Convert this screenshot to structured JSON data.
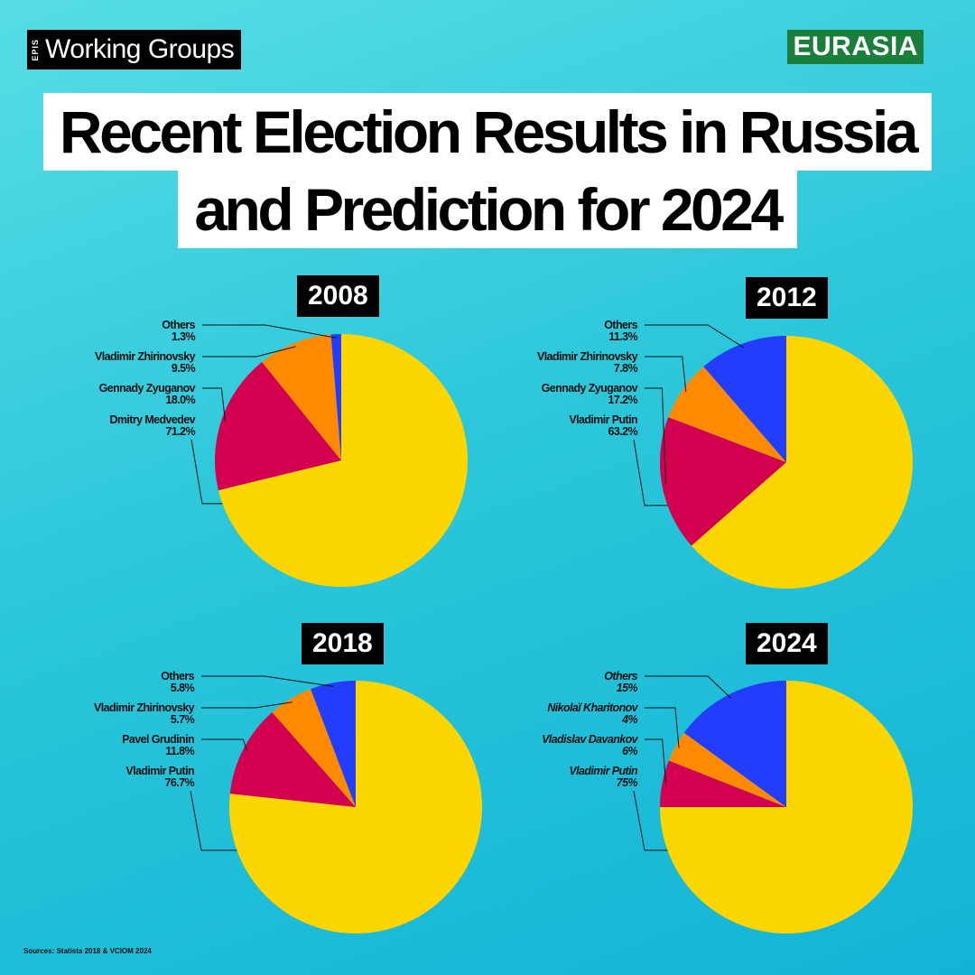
{
  "brand": {
    "prefix": "EPIS",
    "name": "Working Groups",
    "badge": "EURASIA"
  },
  "title": {
    "line1": "Recent Election Results in Russia",
    "line2": "and Prediction for 2024"
  },
  "source": "Sources: Statista 2018 & VCIOM 2024",
  "chart_data": [
    {
      "type": "pie",
      "title": "2008",
      "slices": [
        {
          "name": "Dmitry Medvedev",
          "value": 71.2,
          "label": "71.2%",
          "color": "#fdd600"
        },
        {
          "name": "Gennady Zyuganov",
          "value": 18.0,
          "label": "18.0%",
          "color": "#d2004f"
        },
        {
          "name": "Vladimir Zhirinovsky",
          "value": 9.5,
          "label": "9.5%",
          "color": "#ff8a00"
        },
        {
          "name": "Others",
          "value": 1.3,
          "label": "1.3%",
          "color": "#233dff"
        }
      ]
    },
    {
      "type": "pie",
      "title": "2012",
      "slices": [
        {
          "name": "Vladimir Putin",
          "value": 63.2,
          "label": "63.2%",
          "color": "#fdd600"
        },
        {
          "name": "Gennady Zyuganov",
          "value": 17.2,
          "label": "17.2%",
          "color": "#d2004f"
        },
        {
          "name": "Vladimir Zhirinovsky",
          "value": 7.8,
          "label": "7.8%",
          "color": "#ff8a00"
        },
        {
          "name": "Others",
          "value": 11.3,
          "label": "11.3%",
          "color": "#233dff"
        }
      ]
    },
    {
      "type": "pie",
      "title": "2018",
      "slices": [
        {
          "name": "Vladimir Putin",
          "value": 76.7,
          "label": "76.7%",
          "color": "#fdd600"
        },
        {
          "name": "Pavel Grudinin",
          "value": 11.8,
          "label": "11.8%",
          "color": "#d2004f"
        },
        {
          "name": "Vladimir Zhirinovsky",
          "value": 5.7,
          "label": "5.7%",
          "color": "#ff8a00"
        },
        {
          "name": "Others",
          "value": 5.8,
          "label": "5.8%",
          "color": "#233dff"
        }
      ]
    },
    {
      "type": "pie",
      "title": "2024",
      "italic_labels": true,
      "slices": [
        {
          "name": "Vladimir Putin",
          "value": 75,
          "label": "75%",
          "color": "#fdd600"
        },
        {
          "name": "Vladislav Davankov",
          "value": 6,
          "label": "6%",
          "color": "#d2004f"
        },
        {
          "name": "Nikolaĭ Kharitonov",
          "value": 4,
          "label": "4%",
          "color": "#ff8a00"
        },
        {
          "name": "Others",
          "value": 15,
          "label": "15%",
          "color": "#233dff"
        }
      ]
    }
  ]
}
